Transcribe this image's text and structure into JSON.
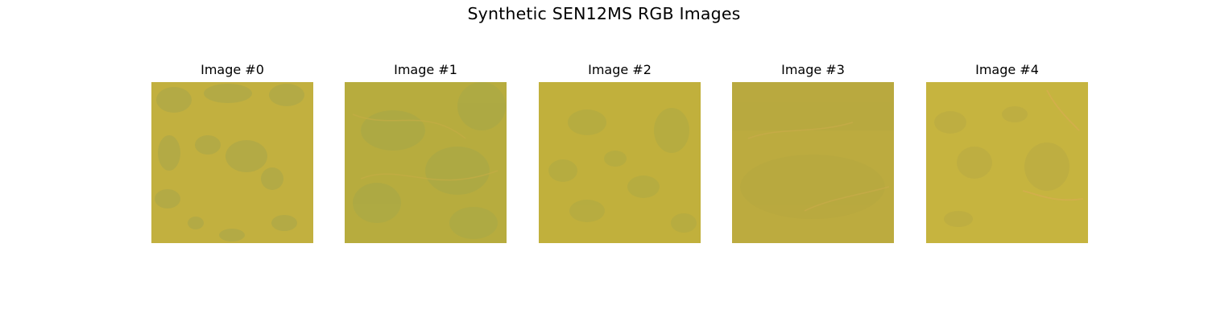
{
  "figure": {
    "title": "Synthetic SEN12MS RGB Images"
  },
  "images": [
    {
      "label": "Image #0",
      "base_color": "#c2b03f",
      "shade_color": "#a8a64a",
      "accent_color": "#d0b544"
    },
    {
      "label": "Image #1",
      "base_color": "#b7ac3e",
      "shade_color": "#a8a847",
      "accent_color": "#c4ad45"
    },
    {
      "label": "Image #2",
      "base_color": "#c1b03c",
      "shade_color": "#aeaa44",
      "accent_color": "#cdb341"
    },
    {
      "label": "Image #3",
      "base_color": "#bcab3f",
      "shade_color": "#b5a840",
      "accent_color": "#c9ab4a"
    },
    {
      "label": "Image #4",
      "base_color": "#c6b43f",
      "shade_color": "#b8aa44",
      "accent_color": "#d6ae4e"
    }
  ]
}
